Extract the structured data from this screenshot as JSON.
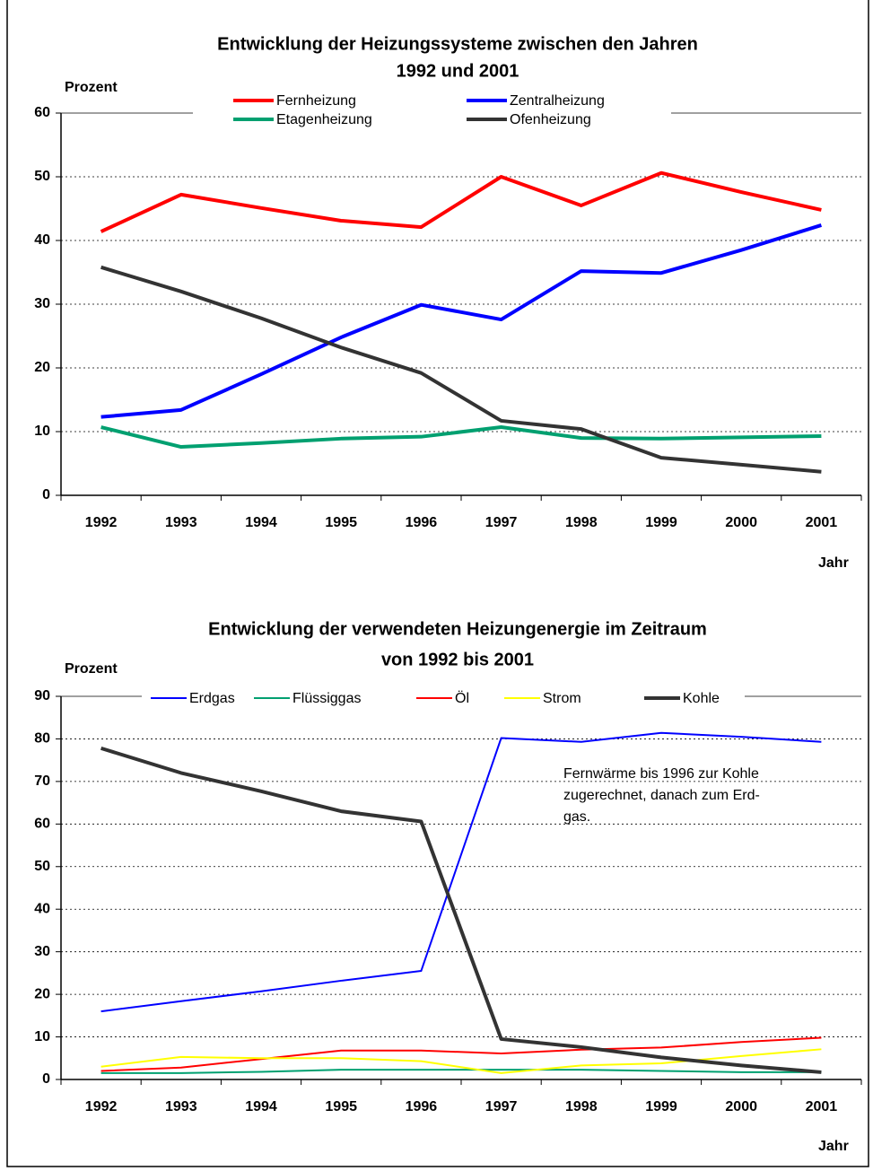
{
  "chart_data": [
    {
      "type": "line",
      "title": [
        "Entwicklung der Heizungssysteme zwischen den Jahren",
        "1992 und 2001"
      ],
      "y_label": "Prozent",
      "x_label": "Jahr",
      "categories": [
        "1992",
        "1993",
        "1994",
        "1995",
        "1996",
        "1997",
        "1998",
        "1999",
        "2000",
        "2001"
      ],
      "ylim": [
        0,
        60
      ],
      "yticks": [
        0,
        10,
        20,
        30,
        40,
        50,
        60
      ],
      "grid": true,
      "series": [
        {
          "name": "Fernheizung",
          "color": "#ff0000",
          "line_width": 4,
          "values": [
            41.4,
            47.2,
            45.1,
            43.1,
            42.1,
            50.0,
            45.5,
            50.6,
            47.6,
            44.8
          ]
        },
        {
          "name": "Zentralheizung",
          "color": "#0000ff",
          "line_width": 4,
          "values": [
            12.3,
            13.4,
            19.0,
            24.8,
            29.9,
            27.6,
            35.2,
            34.9,
            38.5,
            42.4
          ]
        },
        {
          "name": "Etagenheizung",
          "color": "#00a070",
          "line_width": 4,
          "values": [
            10.7,
            7.6,
            8.2,
            8.9,
            9.2,
            10.7,
            9.0,
            8.9,
            9.1,
            9.3
          ]
        },
        {
          "name": "Ofenheizung",
          "color": "#333333",
          "line_width": 4,
          "values": [
            35.8,
            32.0,
            27.8,
            23.2,
            19.2,
            11.7,
            10.4,
            5.9,
            4.8,
            3.7
          ]
        }
      ]
    },
    {
      "type": "line",
      "title": [
        "Entwicklung der verwendeten Heizungenergie im Zeitraum",
        "von 1992 bis 2001"
      ],
      "y_label": "Prozent",
      "x_label": "Jahr",
      "categories": [
        "1992",
        "1993",
        "1994",
        "1995",
        "1996",
        "1997",
        "1998",
        "1999",
        "2000",
        "2001"
      ],
      "ylim": [
        0,
        90
      ],
      "yticks": [
        0,
        10,
        20,
        30,
        40,
        50,
        60,
        70,
        80,
        90
      ],
      "grid": true,
      "annotation": [
        "Fernwärme bis 1996 zur Kohle",
        "zugerechnet, danach zum Erd-",
        "gas."
      ],
      "series": [
        {
          "name": "Erdgas",
          "color": "#0000ff",
          "line_width": 2,
          "values": [
            16.0,
            18.4,
            20.7,
            23.2,
            25.5,
            80.2,
            79.3,
            81.4,
            80.5,
            79.3
          ]
        },
        {
          "name": "Flüssiggas",
          "color": "#00a070",
          "line_width": 2,
          "values": [
            1.5,
            1.5,
            1.8,
            2.3,
            2.3,
            2.3,
            2.3,
            2.0,
            1.7,
            1.7
          ]
        },
        {
          "name": "Öl",
          "color": "#ff0000",
          "line_width": 2,
          "values": [
            2.0,
            2.8,
            4.8,
            6.8,
            6.8,
            6.1,
            7.0,
            7.5,
            8.8,
            9.8
          ]
        },
        {
          "name": "Strom",
          "color": "#ffff00",
          "line_width": 2,
          "values": [
            3.0,
            5.3,
            5.0,
            5.0,
            4.3,
            1.5,
            3.3,
            3.8,
            5.5,
            7.1
          ]
        },
        {
          "name": "Kohle",
          "color": "#333333",
          "line_width": 4,
          "values": [
            77.8,
            72.0,
            67.7,
            63.0,
            60.6,
            9.5,
            7.6,
            5.2,
            3.3,
            1.7
          ]
        }
      ]
    }
  ]
}
